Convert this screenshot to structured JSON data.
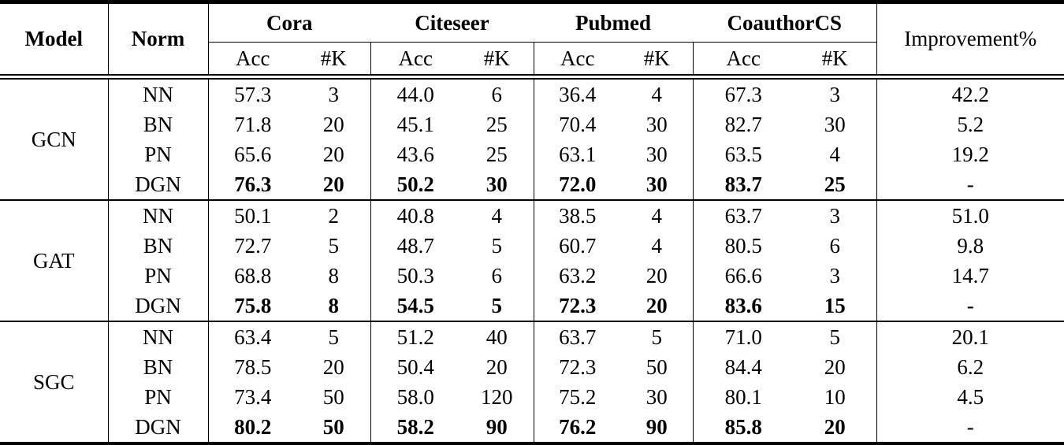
{
  "header": {
    "model": "Model",
    "norm": "Norm",
    "datasets": [
      "Cora",
      "Citeseer",
      "Pubmed",
      "CoauthorCS"
    ],
    "subcolumns": [
      "Acc",
      "#K"
    ],
    "improvement": "Improvement%"
  },
  "blocks": [
    {
      "model": "GCN",
      "rows": [
        {
          "norm": "NN",
          "cells": [
            "57.3",
            "3",
            "44.0",
            "6",
            "36.4",
            "4",
            "67.3",
            "3"
          ],
          "improvement": "42.2",
          "bold": false
        },
        {
          "norm": "BN",
          "cells": [
            "71.8",
            "20",
            "45.1",
            "25",
            "70.4",
            "30",
            "82.7",
            "30"
          ],
          "improvement": "5.2",
          "bold": false
        },
        {
          "norm": "PN",
          "cells": [
            "65.6",
            "20",
            "43.6",
            "25",
            "63.1",
            "30",
            "63.5",
            "4"
          ],
          "improvement": "19.2",
          "bold": false
        },
        {
          "norm": "DGN",
          "cells": [
            "76.3",
            "20",
            "50.2",
            "30",
            "72.0",
            "30",
            "83.7",
            "25"
          ],
          "improvement": "-",
          "bold": true
        }
      ]
    },
    {
      "model": "GAT",
      "rows": [
        {
          "norm": "NN",
          "cells": [
            "50.1",
            "2",
            "40.8",
            "4",
            "38.5",
            "4",
            "63.7",
            "3"
          ],
          "improvement": "51.0",
          "bold": false
        },
        {
          "norm": "BN",
          "cells": [
            "72.7",
            "5",
            "48.7",
            "5",
            "60.7",
            "4",
            "80.5",
            "6"
          ],
          "improvement": "9.8",
          "bold": false
        },
        {
          "norm": "PN",
          "cells": [
            "68.8",
            "8",
            "50.3",
            "6",
            "63.2",
            "20",
            "66.6",
            "3"
          ],
          "improvement": "14.7",
          "bold": false
        },
        {
          "norm": "DGN",
          "cells": [
            "75.8",
            "8",
            "54.5",
            "5",
            "72.3",
            "20",
            "83.6",
            "15"
          ],
          "improvement": "-",
          "bold": true
        }
      ]
    },
    {
      "model": "SGC",
      "rows": [
        {
          "norm": "NN",
          "cells": [
            "63.4",
            "5",
            "51.2",
            "40",
            "63.7",
            "5",
            "71.0",
            "5"
          ],
          "improvement": "20.1",
          "bold": false
        },
        {
          "norm": "BN",
          "cells": [
            "78.5",
            "20",
            "50.4",
            "20",
            "72.3",
            "50",
            "84.4",
            "20"
          ],
          "improvement": "6.2",
          "bold": false
        },
        {
          "norm": "PN",
          "cells": [
            "73.4",
            "50",
            "58.0",
            "120",
            "75.2",
            "30",
            "80.1",
            "10"
          ],
          "improvement": "4.5",
          "bold": false
        },
        {
          "norm": "DGN",
          "cells": [
            "80.2",
            "50",
            "58.2",
            "90",
            "76.2",
            "90",
            "85.8",
            "20"
          ],
          "improvement": "-",
          "bold": true
        }
      ]
    }
  ],
  "colors": {
    "text": "#000000",
    "line": "#000000",
    "background": "#ffffff"
  }
}
